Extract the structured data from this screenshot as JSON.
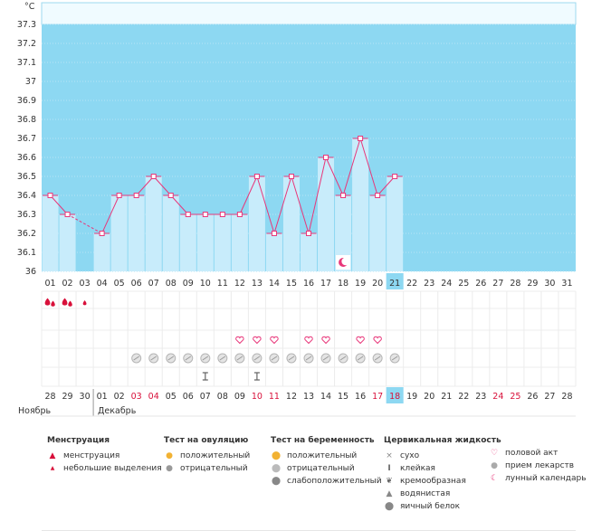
{
  "chart_data": {
    "type": "line",
    "ylabel": "°C",
    "ylim": [
      36.0,
      37.3
    ],
    "y_ticks": [
      "37.3",
      "37.2",
      "37.1",
      "37",
      "36.9",
      "36.8",
      "36.7",
      "36.6",
      "36.5",
      "36.4",
      "36.3",
      "36.2",
      "36.1",
      "36"
    ],
    "cycle_days": [
      "01",
      "02",
      "03",
      "04",
      "05",
      "06",
      "07",
      "08",
      "09",
      "10",
      "11",
      "12",
      "13",
      "14",
      "15",
      "16",
      "17",
      "18",
      "19",
      "20",
      "21",
      "22",
      "23",
      "24",
      "25",
      "26",
      "27",
      "28",
      "29",
      "30",
      "31"
    ],
    "current_cycle_day": "21",
    "values": [
      36.4,
      36.3,
      null,
      36.2,
      36.4,
      36.4,
      36.5,
      36.4,
      36.3,
      36.3,
      36.3,
      36.3,
      36.5,
      36.2,
      36.5,
      36.2,
      36.6,
      36.4,
      36.7,
      36.4,
      36.5,
      null,
      null,
      null,
      null,
      null,
      null,
      null,
      null,
      null,
      null
    ],
    "colors": {
      "line": "#e8377a",
      "bar": "#c8ecfb",
      "background": "#8dd8f2",
      "background_top": "#f0fbff"
    },
    "dates": [
      "28",
      "29",
      "30",
      "01",
      "02",
      "03",
      "04",
      "05",
      "06",
      "07",
      "08",
      "09",
      "10",
      "11",
      "12",
      "13",
      "14",
      "15",
      "16",
      "17",
      "18",
      "19",
      "20",
      "21",
      "22",
      "23",
      "24",
      "25",
      "26",
      "27",
      "28"
    ],
    "weekend_date_indices": [
      5,
      6,
      12,
      13,
      19,
      20,
      26,
      27
    ],
    "today_date_index": 20,
    "month_labels": [
      "Ноябрь",
      "Декабрь"
    ],
    "menstruation": {
      "menses_days": [
        1,
        2
      ],
      "spotting_days": [
        3
      ]
    },
    "intercourse_days": [
      12,
      13,
      14,
      16,
      17,
      19,
      20
    ],
    "medication_days": [
      6,
      7,
      8,
      9,
      10,
      11,
      12,
      13,
      14,
      15,
      16,
      17,
      18,
      19,
      20,
      21
    ],
    "cervical_sticky_days": [
      10,
      13
    ],
    "moon_day": 18
  },
  "legend": {
    "menstruation": {
      "title": "Менструация",
      "items": [
        "менструация",
        "небольшие выделения"
      ]
    },
    "ovulation": {
      "title": "Тест на овуляцию",
      "items": [
        "положительный",
        "отрицательный"
      ]
    },
    "pregnancy": {
      "title": "Тест на беременность",
      "items": [
        "положительный",
        "отрицательный",
        "слабоположительный"
      ]
    },
    "cervical": {
      "title": "Цервикальная жидкость",
      "items": [
        "сухо",
        "клейкая",
        "кремообразная",
        "водянистая",
        "яичный белок"
      ]
    },
    "other": {
      "items": [
        "половой акт",
        "прием лекарств",
        "лунный календарь"
      ]
    }
  }
}
